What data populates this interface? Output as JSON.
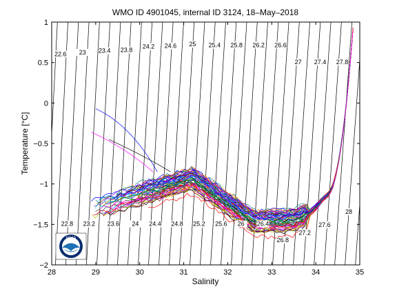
{
  "chart_data": {
    "type": "line",
    "title": "WMO ID 4901045, internal ID 3124, 18–May–2018",
    "xlabel": "Salinity",
    "ylabel": "Temperature [°C]",
    "xlim": [
      28,
      35
    ],
    "ylim": [
      -2,
      1
    ],
    "x_ticks": [
      "28",
      "29",
      "30",
      "31",
      "32",
      "33",
      "34",
      "35"
    ],
    "y_ticks": [
      "−2",
      "−1.5",
      "−1",
      "−0.5",
      "0",
      "0.5",
      "1"
    ],
    "grid": false,
    "density_isolines": {
      "top_labels": [
        {
          "value": "22.6",
          "s": 28.2,
          "t": 0.58
        },
        {
          "value": "23",
          "s": 28.7,
          "t": 0.6
        },
        {
          "value": "23.4",
          "s": 29.2,
          "t": 0.62
        },
        {
          "value": "23.8",
          "s": 29.7,
          "t": 0.63
        },
        {
          "value": "24.2",
          "s": 30.2,
          "t": 0.67
        },
        {
          "value": "24.6",
          "s": 30.7,
          "t": 0.68
        },
        {
          "value": "25",
          "s": 31.2,
          "t": 0.7
        },
        {
          "value": "25.4",
          "s": 31.7,
          "t": 0.69
        },
        {
          "value": "25.8",
          "s": 32.2,
          "t": 0.69
        },
        {
          "value": "26.2",
          "s": 32.7,
          "t": 0.69
        },
        {
          "value": "26.6",
          "s": 33.2,
          "t": 0.69
        },
        {
          "value": "27",
          "s": 33.6,
          "t": 0.48
        },
        {
          "value": "27.4",
          "s": 34.1,
          "t": 0.48
        },
        {
          "value": "27.8",
          "s": 34.6,
          "t": 0.48
        }
      ],
      "bottom_labels": [
        {
          "value": "22.8",
          "s": 28.35,
          "t": -1.52
        },
        {
          "value": "23.2",
          "s": 28.85,
          "t": -1.52
        },
        {
          "value": "23.6",
          "s": 29.4,
          "t": -1.52
        },
        {
          "value": "24",
          "s": 29.9,
          "t": -1.52
        },
        {
          "value": "24.4",
          "s": 30.35,
          "t": -1.52
        },
        {
          "value": "24.8",
          "s": 30.85,
          "t": -1.52
        },
        {
          "value": "25.2",
          "s": 31.35,
          "t": -1.52
        },
        {
          "value": "25.6",
          "s": 31.85,
          "t": -1.52
        },
        {
          "value": "26",
          "s": 32.3,
          "t": -1.52
        },
        {
          "value": "26.4",
          "s": 32.8,
          "t": -1.52
        },
        {
          "value": "26.8",
          "s": 33.25,
          "t": -1.72
        },
        {
          "value": "27.2",
          "s": 33.75,
          "t": -1.63
        },
        {
          "value": "27.6",
          "s": 34.2,
          "t": -1.53
        },
        {
          "value": "28",
          "s": 34.75,
          "t": -1.37
        }
      ]
    },
    "profiles_description_values": {
      "series_count": 60
    },
    "logo": {
      "text": "NOAA",
      "primary_color": "#1f6fb5",
      "dark_color": "#0a2d6e"
    }
  }
}
